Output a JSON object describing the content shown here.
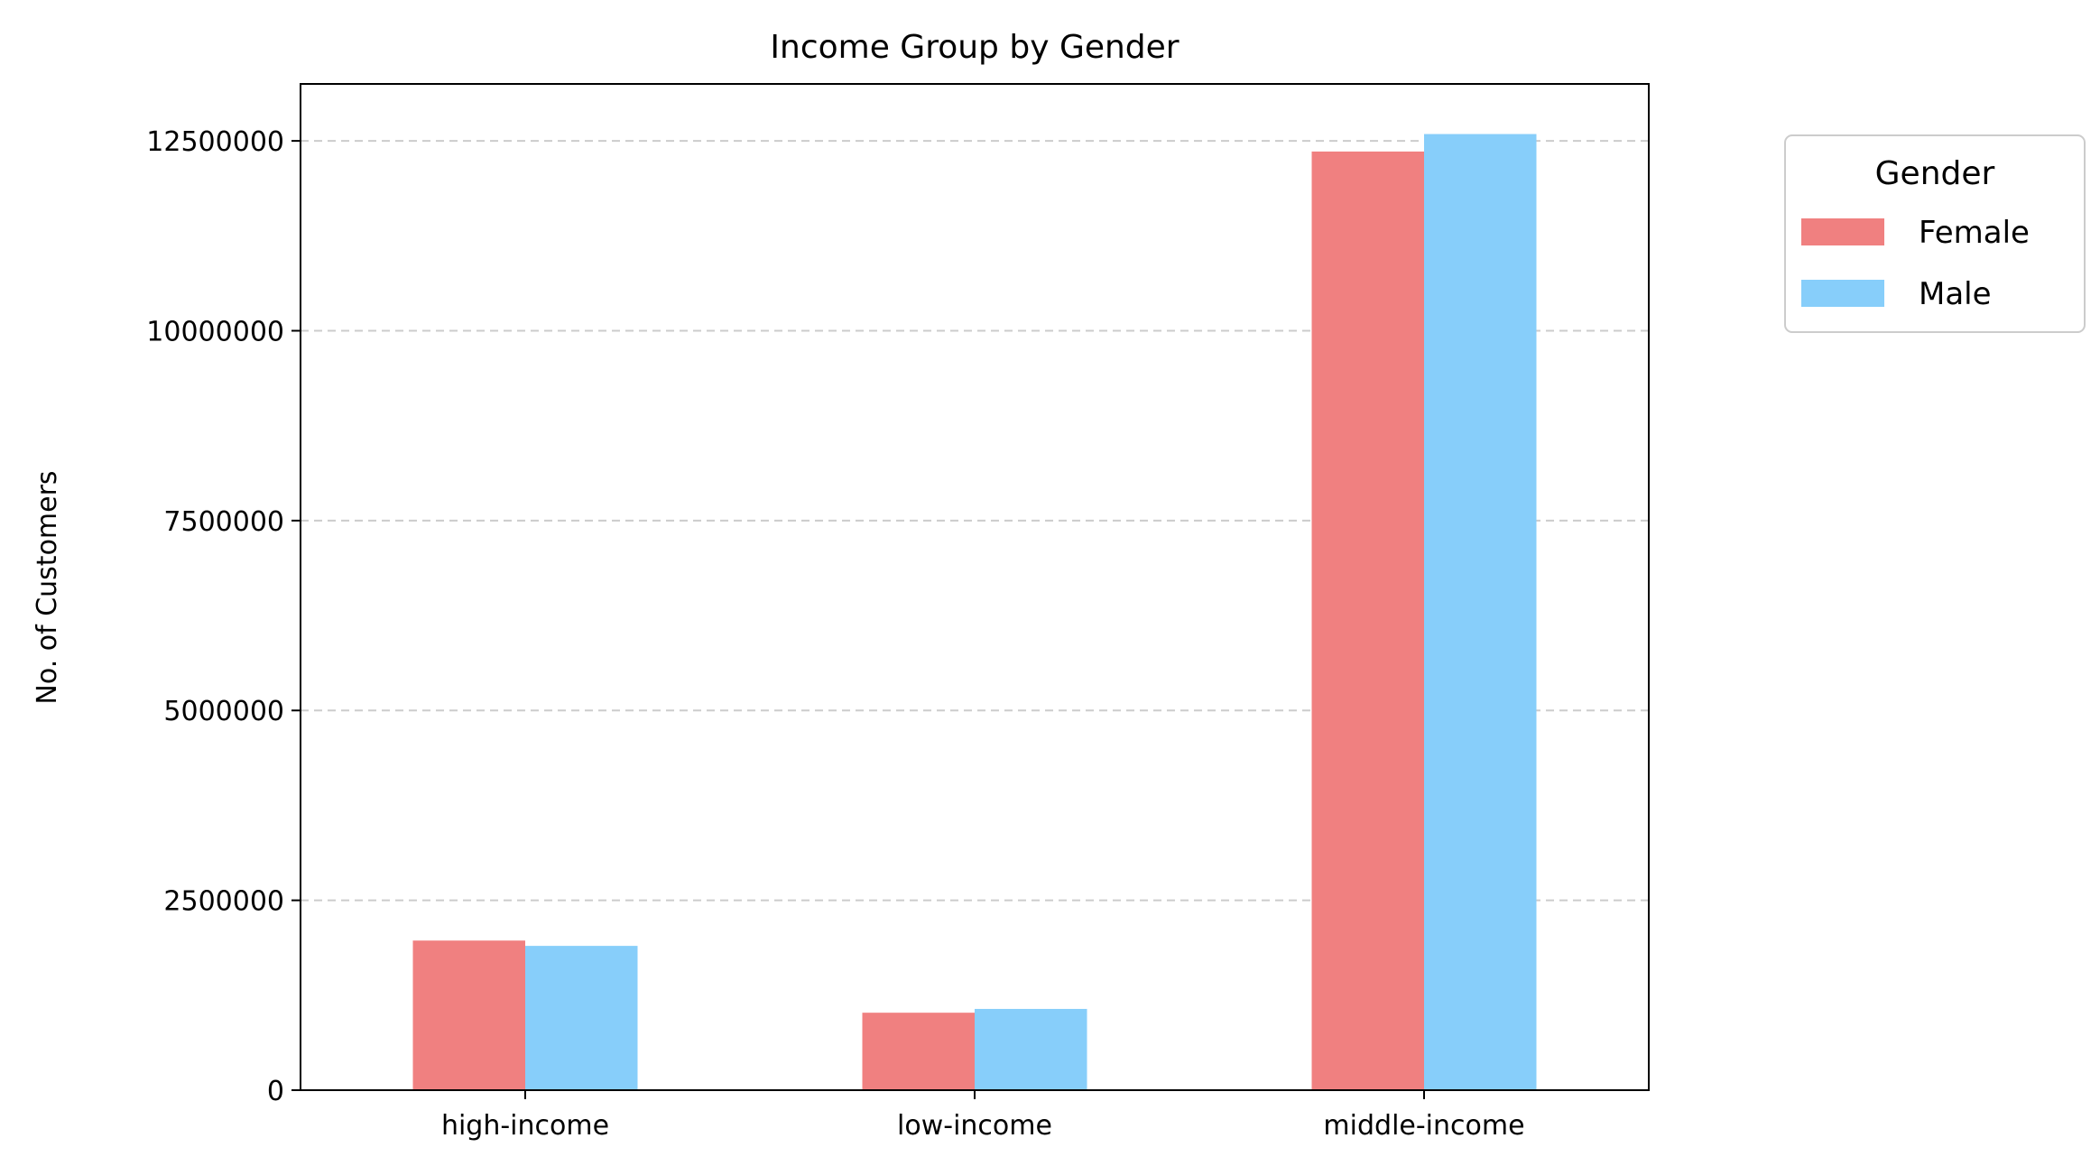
{
  "chart_data": {
    "type": "bar",
    "title": "Income Group by Gender",
    "xlabel": "",
    "ylabel": "No. of Customers",
    "categories": [
      "high-income",
      "low-income",
      "middle-income"
    ],
    "series": [
      {
        "name": "Female",
        "color": "#F08080",
        "values": [
          1970000,
          1020000,
          12360000
        ]
      },
      {
        "name": "Male",
        "color": "#87CEFA",
        "values": [
          1900000,
          1070000,
          12590000
        ]
      }
    ],
    "ylim": [
      0,
      13250000
    ],
    "yticks": [
      0,
      2500000,
      5000000,
      7500000,
      10000000,
      12500000
    ],
    "ytick_labels": [
      "0",
      "2500000",
      "5000000",
      "7500000",
      "10000000",
      "12500000"
    ],
    "grid": {
      "axis": "y",
      "style": "dashed",
      "color": "#cccccc"
    },
    "legend": {
      "title": "Gender",
      "placement": "outside-top-right"
    }
  }
}
